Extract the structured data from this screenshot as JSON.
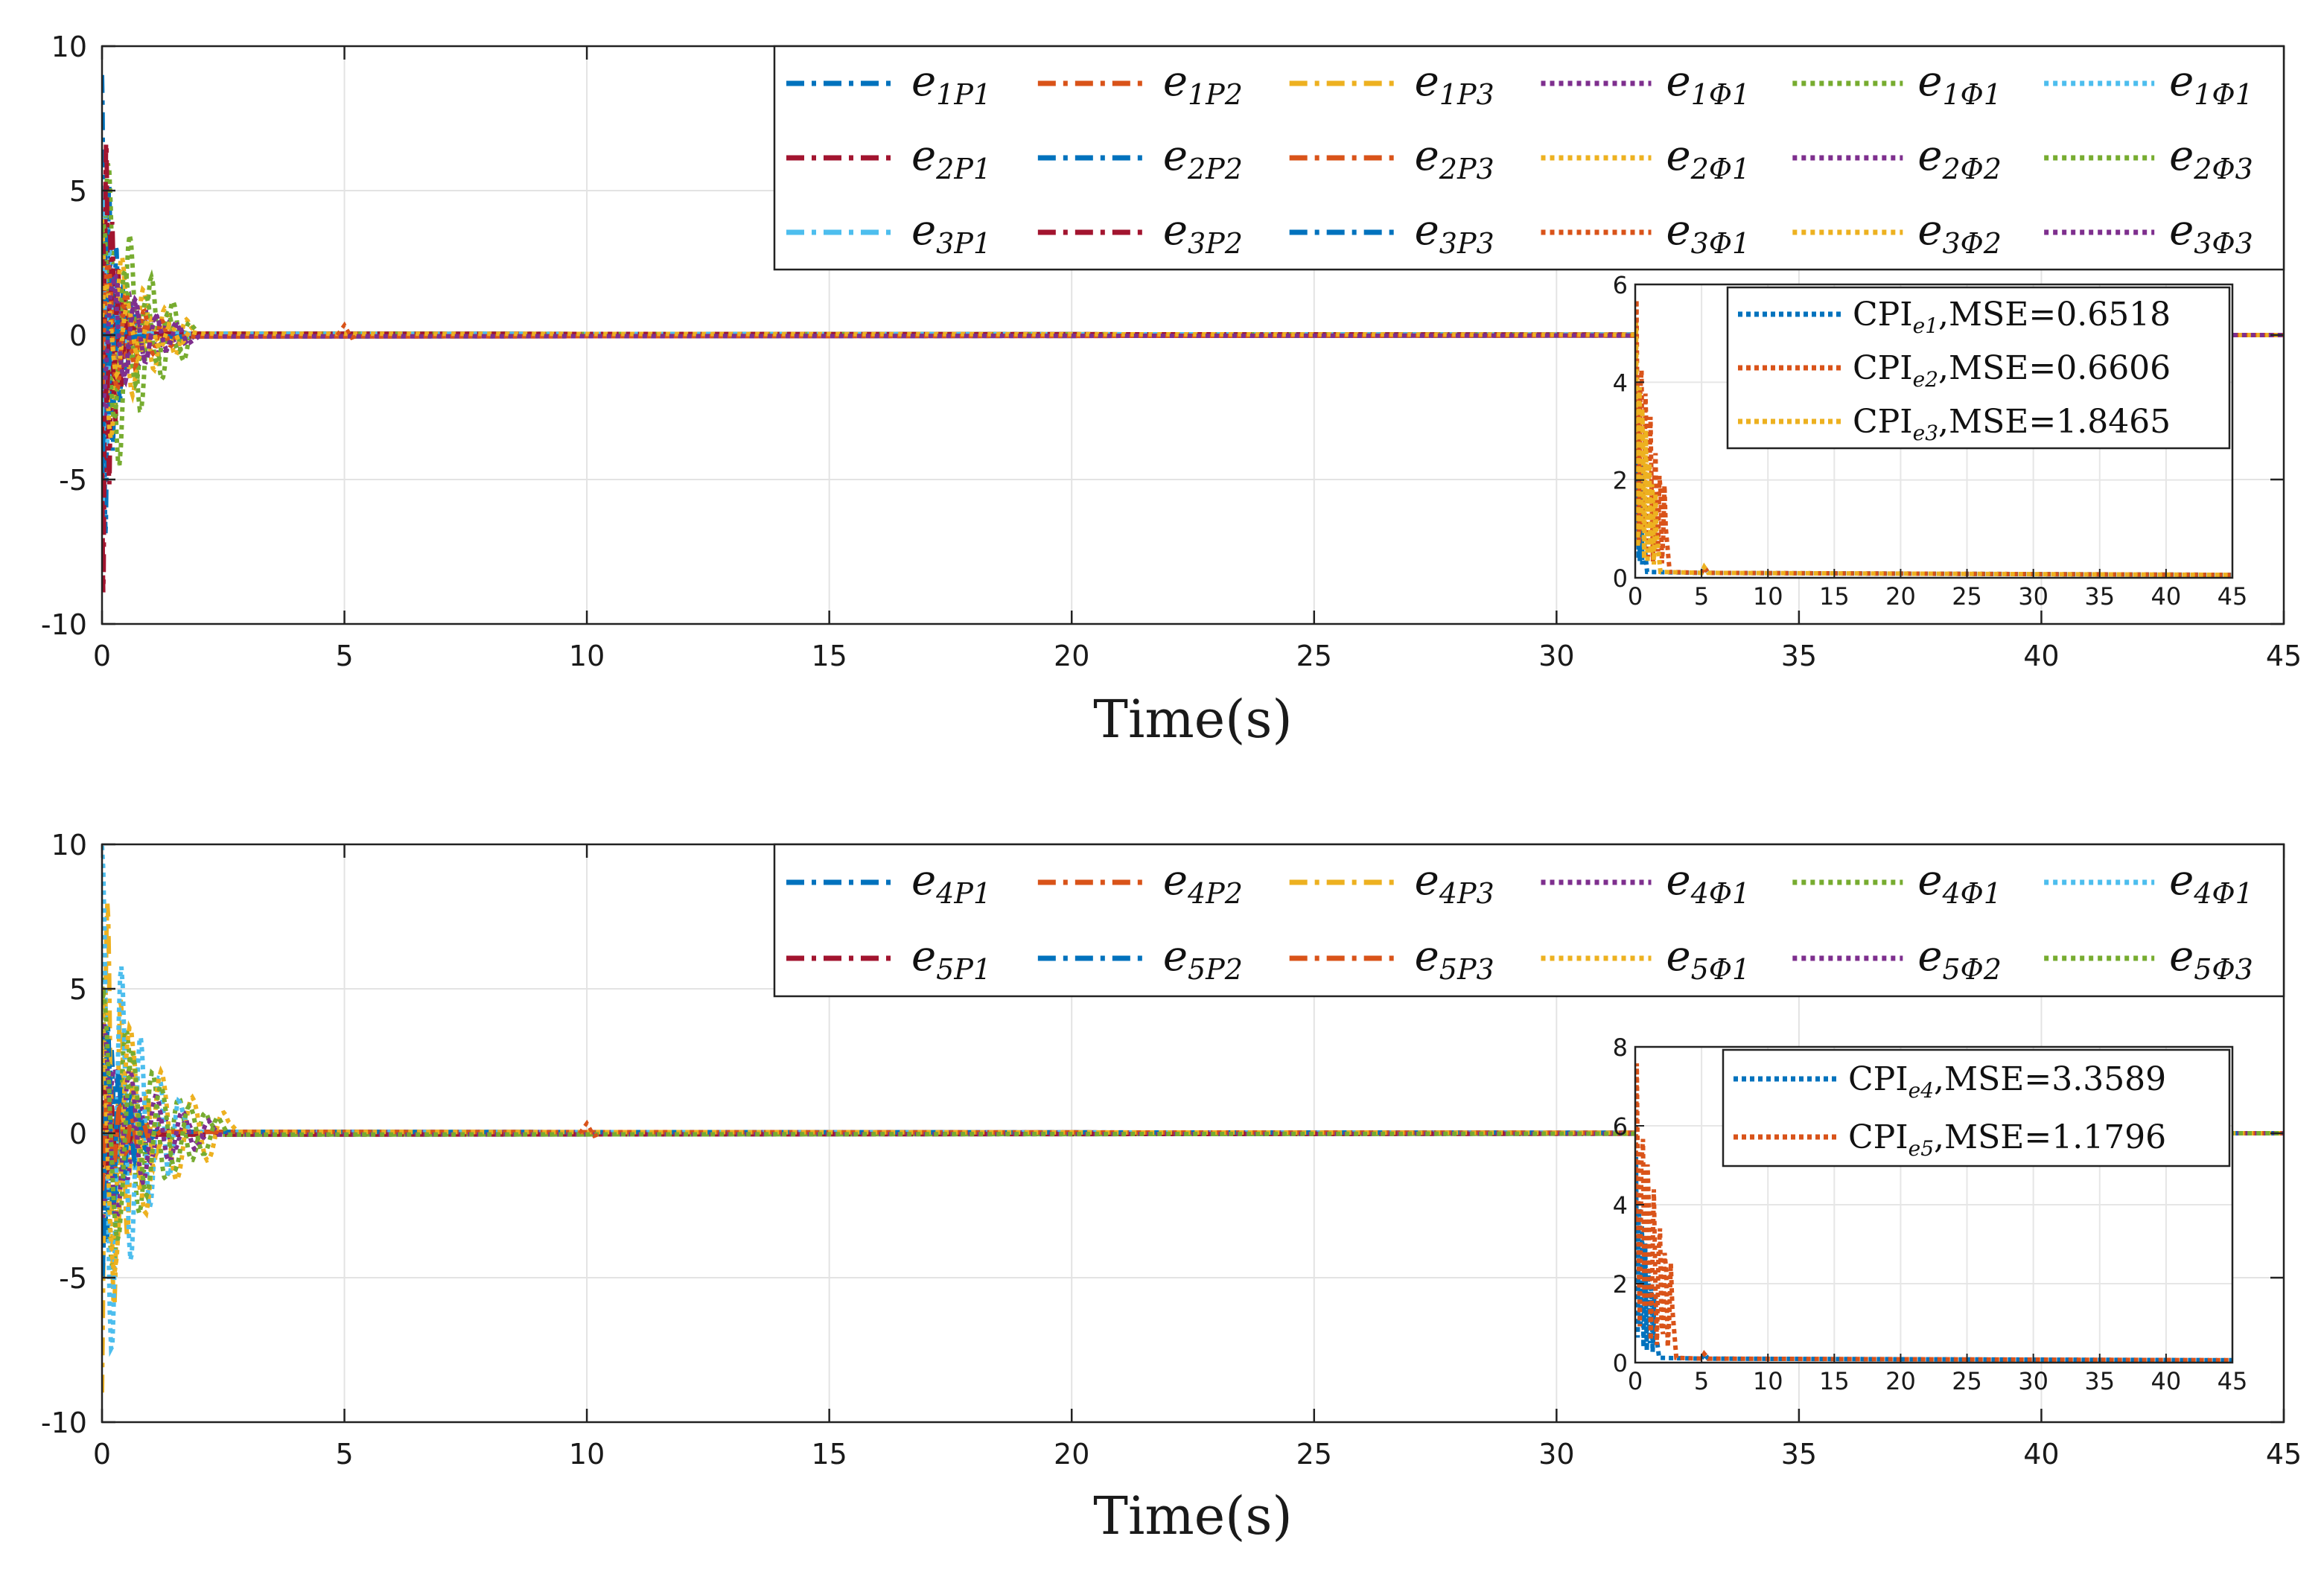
{
  "colors": {
    "blue": "#0072BD",
    "orange": "#D95319",
    "yellow": "#EDB120",
    "purple": "#7E2F8E",
    "green": "#77AC30",
    "cyan": "#4DBEEE",
    "red": "#A2142F"
  },
  "chart_data": [
    {
      "type": "line",
      "title": "",
      "xlabel": "Time(s)",
      "ylabel": "",
      "xlim": [
        0,
        45
      ],
      "ylim": [
        -10,
        10
      ],
      "xticks": [
        "0",
        "5",
        "10",
        "15",
        "20",
        "25",
        "30",
        "35",
        "40",
        "45"
      ],
      "yticks": [
        "-10",
        "-5",
        "0",
        "5",
        "10"
      ],
      "grid": true,
      "legend_position": "top-right",
      "series": [
        {
          "base": "e",
          "sub": "1P1",
          "color": "blue",
          "style": "dashdot",
          "peak": 9,
          "dur": 0.6
        },
        {
          "base": "e",
          "sub": "1P2",
          "color": "orange",
          "style": "dashdot",
          "peak": 2.5,
          "dur": 1.0
        },
        {
          "base": "e",
          "sub": "1P3",
          "color": "yellow",
          "style": "dashdot",
          "peak": 2.0,
          "dur": 1.2
        },
        {
          "base": "e",
          "sub": "1Φ1",
          "color": "purple",
          "style": "dotted",
          "peak": 3.0,
          "dur": 1.6
        },
        {
          "base": "e",
          "sub": "1Φ1",
          "color": "green",
          "style": "dotted",
          "peak": 7,
          "dur": 1.8
        },
        {
          "base": "e",
          "sub": "1Φ1",
          "color": "cyan",
          "style": "dotted",
          "peak": -7,
          "dur": 0.4
        },
        {
          "base": "e",
          "sub": "2P1",
          "color": "red",
          "style": "dashdot",
          "peak": -10,
          "dur": 0.5
        },
        {
          "base": "e",
          "sub": "2P2",
          "color": "blue",
          "style": "dashdot",
          "peak": 5,
          "dur": 0.5
        },
        {
          "base": "e",
          "sub": "2P3",
          "color": "orange",
          "style": "dashdot",
          "peak": 2.0,
          "dur": 1.0
        },
        {
          "base": "e",
          "sub": "2Φ1",
          "color": "yellow",
          "style": "dotted",
          "peak": -4.5,
          "dur": 1.8
        },
        {
          "base": "e",
          "sub": "2Φ2",
          "color": "purple",
          "style": "dotted",
          "peak": -3,
          "dur": 1.7
        },
        {
          "base": "e",
          "sub": "2Φ3",
          "color": "green",
          "style": "dotted",
          "peak": 4.0,
          "dur": 1.8
        },
        {
          "base": "e",
          "sub": "3P1",
          "color": "cyan",
          "style": "dashdot",
          "peak": 3.0,
          "dur": 0.5
        },
        {
          "base": "e",
          "sub": "3P2",
          "color": "red",
          "style": "dashdot",
          "peak": 3.5,
          "dur": 0.6
        },
        {
          "base": "e",
          "sub": "3P3",
          "color": "blue",
          "style": "dashdot",
          "peak": -2.0,
          "dur": 0.5
        },
        {
          "base": "e",
          "sub": "3Φ1",
          "color": "orange",
          "style": "dotted",
          "peak": -3.0,
          "dur": 1.5
        },
        {
          "base": "e",
          "sub": "3Φ2",
          "color": "yellow",
          "style": "dotted",
          "peak": 2.0,
          "dur": 1.8
        },
        {
          "base": "e",
          "sub": "3Φ3",
          "color": "purple",
          "style": "dotted",
          "peak": -2.5,
          "dur": 1.8
        }
      ],
      "inset": {
        "xlim": [
          0,
          45
        ],
        "ylim": [
          0,
          6
        ],
        "xticks": [
          "0",
          "5",
          "10",
          "15",
          "20",
          "25",
          "30",
          "35",
          "40",
          "45"
        ],
        "yticks": [
          "0",
          "2",
          "4",
          "6"
        ],
        "series": [
          {
            "label": "CPI",
            "sub": "e1",
            "mse_text": ",MSE=0.6518",
            "color": "blue",
            "peak": 5.5,
            "dur": 0.6
          },
          {
            "label": "CPI",
            "sub": "e2",
            "mse_text": ",MSE=0.6606",
            "color": "orange",
            "peak": 6.0,
            "dur": 2.3
          },
          {
            "label": "CPI",
            "sub": "e3",
            "mse_text": ",MSE=1.8465",
            "color": "yellow",
            "peak": 5.5,
            "dur": 1.6
          }
        ]
      }
    },
    {
      "type": "line",
      "title": "",
      "xlabel": "Time(s)",
      "ylabel": "",
      "xlim": [
        0,
        45
      ],
      "ylim": [
        -10,
        10
      ],
      "xticks": [
        "0",
        "5",
        "10",
        "15",
        "20",
        "25",
        "30",
        "35",
        "40",
        "45"
      ],
      "yticks": [
        "-10",
        "-5",
        "0",
        "5",
        "10"
      ],
      "grid": true,
      "legend_position": "top-right",
      "series": [
        {
          "base": "e",
          "sub": "4P1",
          "color": "blue",
          "style": "dashdot",
          "peak": 5,
          "dur": 0.8
        },
        {
          "base": "e",
          "sub": "4P2",
          "color": "orange",
          "style": "dashdot",
          "peak": 2.5,
          "dur": 1.0
        },
        {
          "base": "e",
          "sub": "4P3",
          "color": "yellow",
          "style": "dashdot",
          "peak": 10,
          "dur": 1.1
        },
        {
          "base": "e",
          "sub": "4Φ1",
          "color": "purple",
          "style": "dotted",
          "peak": 3.0,
          "dur": 2.0
        },
        {
          "base": "e",
          "sub": "4Φ1",
          "color": "green",
          "style": "dotted",
          "peak": -6,
          "dur": 2.2
        },
        {
          "base": "e",
          "sub": "4Φ1",
          "color": "cyan",
          "style": "dotted",
          "peak": 10,
          "dur": 1.6
        },
        {
          "base": "e",
          "sub": "5P1",
          "color": "red",
          "style": "dashdot",
          "peak": -2.0,
          "dur": 0.6
        },
        {
          "base": "e",
          "sub": "5P2",
          "color": "blue",
          "style": "dashdot",
          "peak": 5,
          "dur": 0.9
        },
        {
          "base": "e",
          "sub": "5P3",
          "color": "orange",
          "style": "dashdot",
          "peak": 2.0,
          "dur": 1.0
        },
        {
          "base": "e",
          "sub": "5Φ1",
          "color": "yellow",
          "style": "dotted",
          "peak": 6,
          "dur": 2.6
        },
        {
          "base": "e",
          "sub": "5Φ2",
          "color": "purple",
          "style": "dotted",
          "peak": -4.0,
          "dur": 2.2
        },
        {
          "base": "e",
          "sub": "5Φ3",
          "color": "green",
          "style": "dotted",
          "peak": -5,
          "dur": 2.4
        }
      ],
      "inset": {
        "xlim": [
          0,
          45
        ],
        "ylim": [
          0,
          8
        ],
        "xticks": [
          "0",
          "5",
          "10",
          "15",
          "20",
          "25",
          "30",
          "35",
          "40",
          "45"
        ],
        "yticks": [
          "0",
          "2",
          "4",
          "6",
          "8"
        ],
        "series": [
          {
            "label": "CPI",
            "sub": "e4",
            "mse_text": ",MSE=3.3589",
            "color": "blue",
            "peak": 5.5,
            "dur": 1.5
          },
          {
            "label": "CPI",
            "sub": "e5",
            "mse_text": ",MSE=1.1796",
            "color": "orange",
            "peak": 8.0,
            "dur": 2.8
          }
        ]
      }
    }
  ]
}
